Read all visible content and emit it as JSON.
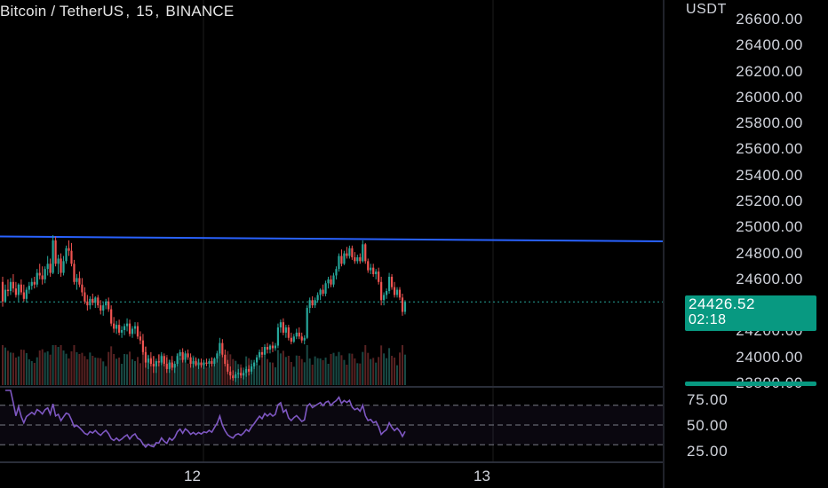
{
  "header": {
    "symbol": "Bitcoin / TetherUS",
    "interval": "15",
    "exchange": "BINANCE"
  },
  "price_scale": {
    "currency": "USDT",
    "labels": [
      "26600.00",
      "26400.00",
      "26200.00",
      "26000.00",
      "25800.00",
      "25600.00",
      "25400.00",
      "25200.00",
      "25000.00",
      "24800.00",
      "24600.00",
      "24400.00",
      "24200.00",
      "24000.00",
      "23800.00"
    ]
  },
  "current_price": {
    "value": "24426.52",
    "countdown": "02:18"
  },
  "rsi_scale": {
    "labels": [
      "75.00",
      "50.00",
      "25.00"
    ]
  },
  "time_axis": {
    "labels": [
      "12",
      "13"
    ]
  },
  "colors": {
    "background": "#000000",
    "up_candle": "#26a69a",
    "down_candle": "#ef5350",
    "trendline": "#2962ff",
    "rsi_line": "#7e57c2",
    "rsi_band": "#7e57c2",
    "price_tag": "#089981",
    "grid": "#1c1c1c"
  },
  "chart_data": {
    "type": "candlestick",
    "price_range": [
      23800,
      26600
    ],
    "trendline": [
      {
        "time_index": 0,
        "price": 24930
      },
      {
        "time_index": 248,
        "price": 24893
      }
    ],
    "current_price_line": 24426.52,
    "rsi": {
      "upper_band": 70,
      "middle_band": 50,
      "lower_band": 30,
      "range": [
        15,
        85
      ]
    },
    "candles": [
      {
        "o": 24580,
        "h": 24620,
        "l": 24390,
        "c": 24430
      },
      {
        "o": 24430,
        "h": 24560,
        "l": 24420,
        "c": 24520
      },
      {
        "o": 24520,
        "h": 24600,
        "l": 24470,
        "c": 24510
      },
      {
        "o": 24510,
        "h": 24610,
        "l": 24480,
        "c": 24580
      },
      {
        "o": 24580,
        "h": 24640,
        "l": 24500,
        "c": 24530
      },
      {
        "o": 24530,
        "h": 24580,
        "l": 24460,
        "c": 24480
      },
      {
        "o": 24480,
        "h": 24570,
        "l": 24430,
        "c": 24560
      },
      {
        "o": 24560,
        "h": 24600,
        "l": 24480,
        "c": 24500
      },
      {
        "o": 24500,
        "h": 24560,
        "l": 24430,
        "c": 24450
      },
      {
        "o": 24450,
        "h": 24540,
        "l": 24420,
        "c": 24520
      },
      {
        "o": 24520,
        "h": 24580,
        "l": 24490,
        "c": 24550
      },
      {
        "o": 24550,
        "h": 24610,
        "l": 24520,
        "c": 24580
      },
      {
        "o": 24580,
        "h": 24620,
        "l": 24530,
        "c": 24560
      },
      {
        "o": 24560,
        "h": 24680,
        "l": 24540,
        "c": 24650
      },
      {
        "o": 24650,
        "h": 24720,
        "l": 24600,
        "c": 24630
      },
      {
        "o": 24630,
        "h": 24700,
        "l": 24560,
        "c": 24600
      },
      {
        "o": 24600,
        "h": 24700,
        "l": 24570,
        "c": 24680
      },
      {
        "o": 24680,
        "h": 24780,
        "l": 24630,
        "c": 24720
      },
      {
        "o": 24720,
        "h": 24760,
        "l": 24620,
        "c": 24650
      },
      {
        "o": 24650,
        "h": 24940,
        "l": 24640,
        "c": 24900
      },
      {
        "o": 24900,
        "h": 24930,
        "l": 24700,
        "c": 24720
      },
      {
        "o": 24720,
        "h": 24790,
        "l": 24640,
        "c": 24760
      },
      {
        "o": 24760,
        "h": 24800,
        "l": 24620,
        "c": 24650
      },
      {
        "o": 24650,
        "h": 24780,
        "l": 24630,
        "c": 24740
      },
      {
        "o": 24740,
        "h": 24860,
        "l": 24720,
        "c": 24840
      },
      {
        "o": 24840,
        "h": 24900,
        "l": 24780,
        "c": 24820
      },
      {
        "o": 24820,
        "h": 24880,
        "l": 24700,
        "c": 24720
      },
      {
        "o": 24720,
        "h": 24750,
        "l": 24560,
        "c": 24580
      },
      {
        "o": 24580,
        "h": 24640,
        "l": 24520,
        "c": 24610
      },
      {
        "o": 24610,
        "h": 24660,
        "l": 24540,
        "c": 24560
      },
      {
        "o": 24560,
        "h": 24610,
        "l": 24470,
        "c": 24500
      },
      {
        "o": 24500,
        "h": 24540,
        "l": 24410,
        "c": 24430
      },
      {
        "o": 24430,
        "h": 24480,
        "l": 24360,
        "c": 24400
      },
      {
        "o": 24400,
        "h": 24470,
        "l": 24370,
        "c": 24450
      },
      {
        "o": 24450,
        "h": 24490,
        "l": 24400,
        "c": 24420
      },
      {
        "o": 24420,
        "h": 24470,
        "l": 24380,
        "c": 24460
      },
      {
        "o": 24460,
        "h": 24480,
        "l": 24380,
        "c": 24400
      },
      {
        "o": 24400,
        "h": 24440,
        "l": 24330,
        "c": 24360
      },
      {
        "o": 24360,
        "h": 24420,
        "l": 24320,
        "c": 24400
      },
      {
        "o": 24400,
        "h": 24450,
        "l": 24370,
        "c": 24430
      },
      {
        "o": 24430,
        "h": 24460,
        "l": 24350,
        "c": 24370
      },
      {
        "o": 24370,
        "h": 24400,
        "l": 24240,
        "c": 24260
      },
      {
        "o": 24260,
        "h": 24310,
        "l": 24190,
        "c": 24220
      },
      {
        "o": 24220,
        "h": 24280,
        "l": 24180,
        "c": 24250
      },
      {
        "o": 24250,
        "h": 24290,
        "l": 24170,
        "c": 24190
      },
      {
        "o": 24190,
        "h": 24240,
        "l": 24150,
        "c": 24210
      },
      {
        "o": 24210,
        "h": 24260,
        "l": 24170,
        "c": 24240
      },
      {
        "o": 24240,
        "h": 24300,
        "l": 24200,
        "c": 24260
      },
      {
        "o": 24260,
        "h": 24290,
        "l": 24160,
        "c": 24180
      },
      {
        "o": 24180,
        "h": 24240,
        "l": 24150,
        "c": 24220
      },
      {
        "o": 24220,
        "h": 24270,
        "l": 24180,
        "c": 24240
      },
      {
        "o": 24240,
        "h": 24270,
        "l": 24140,
        "c": 24160
      },
      {
        "o": 24160,
        "h": 24200,
        "l": 24100,
        "c": 24130
      },
      {
        "o": 24130,
        "h": 24180,
        "l": 24020,
        "c": 24040
      },
      {
        "o": 24040,
        "h": 24080,
        "l": 23920,
        "c": 23960
      },
      {
        "o": 23960,
        "h": 24020,
        "l": 23910,
        "c": 23990
      },
      {
        "o": 23990,
        "h": 24040,
        "l": 23930,
        "c": 23950
      },
      {
        "o": 23950,
        "h": 24010,
        "l": 23880,
        "c": 23930
      },
      {
        "o": 23930,
        "h": 23990,
        "l": 23880,
        "c": 23970
      },
      {
        "o": 23970,
        "h": 24020,
        "l": 23930,
        "c": 23960
      },
      {
        "o": 23960,
        "h": 24040,
        "l": 23940,
        "c": 24010
      },
      {
        "o": 24010,
        "h": 24030,
        "l": 23930,
        "c": 23950
      },
      {
        "o": 23950,
        "h": 24000,
        "l": 23880,
        "c": 23910
      },
      {
        "o": 23910,
        "h": 23980,
        "l": 23880,
        "c": 23960
      },
      {
        "o": 23960,
        "h": 24010,
        "l": 23900,
        "c": 23920
      },
      {
        "o": 23920,
        "h": 23970,
        "l": 23880,
        "c": 23950
      },
      {
        "o": 23950,
        "h": 24030,
        "l": 23930,
        "c": 24010
      },
      {
        "o": 24010,
        "h": 24060,
        "l": 23980,
        "c": 24040
      },
      {
        "o": 24040,
        "h": 24070,
        "l": 23960,
        "c": 23980
      },
      {
        "o": 23980,
        "h": 24050,
        "l": 23960,
        "c": 24030
      },
      {
        "o": 24030,
        "h": 24060,
        "l": 23980,
        "c": 24000
      },
      {
        "o": 24000,
        "h": 24030,
        "l": 23920,
        "c": 23950
      },
      {
        "o": 23950,
        "h": 24000,
        "l": 23920,
        "c": 23970
      },
      {
        "o": 23970,
        "h": 24000,
        "l": 23930,
        "c": 23940
      },
      {
        "o": 23940,
        "h": 23990,
        "l": 23910,
        "c": 23960
      },
      {
        "o": 23960,
        "h": 23990,
        "l": 23920,
        "c": 23940
      },
      {
        "o": 23940,
        "h": 23980,
        "l": 23910,
        "c": 23960
      },
      {
        "o": 23960,
        "h": 23990,
        "l": 23930,
        "c": 23950
      },
      {
        "o": 23950,
        "h": 23990,
        "l": 23920,
        "c": 23970
      },
      {
        "o": 23970,
        "h": 24000,
        "l": 23930,
        "c": 23950
      },
      {
        "o": 23950,
        "h": 24000,
        "l": 23930,
        "c": 23990
      },
      {
        "o": 23990,
        "h": 24050,
        "l": 23960,
        "c": 24030
      },
      {
        "o": 24030,
        "h": 24150,
        "l": 24010,
        "c": 24110
      },
      {
        "o": 24110,
        "h": 24140,
        "l": 24000,
        "c": 24020
      },
      {
        "o": 24020,
        "h": 24060,
        "l": 23930,
        "c": 23950
      },
      {
        "o": 23950,
        "h": 23980,
        "l": 23870,
        "c": 23890
      },
      {
        "o": 23890,
        "h": 23930,
        "l": 23830,
        "c": 23860
      },
      {
        "o": 23860,
        "h": 23900,
        "l": 23820,
        "c": 23840
      },
      {
        "o": 23840,
        "h": 23890,
        "l": 23810,
        "c": 23870
      },
      {
        "o": 23870,
        "h": 23910,
        "l": 23840,
        "c": 23880
      },
      {
        "o": 23880,
        "h": 23920,
        "l": 23840,
        "c": 23860
      },
      {
        "o": 23860,
        "h": 23900,
        "l": 23830,
        "c": 23880
      },
      {
        "o": 23880,
        "h": 23930,
        "l": 23850,
        "c": 23910
      },
      {
        "o": 23910,
        "h": 23940,
        "l": 23860,
        "c": 23890
      },
      {
        "o": 23890,
        "h": 23950,
        "l": 23870,
        "c": 23930
      },
      {
        "o": 23930,
        "h": 23980,
        "l": 23910,
        "c": 23960
      },
      {
        "o": 23960,
        "h": 24020,
        "l": 23940,
        "c": 24000
      },
      {
        "o": 24000,
        "h": 24060,
        "l": 23980,
        "c": 24040
      },
      {
        "o": 24040,
        "h": 24080,
        "l": 24000,
        "c": 24020
      },
      {
        "o": 24020,
        "h": 24100,
        "l": 24010,
        "c": 24080
      },
      {
        "o": 24080,
        "h": 24110,
        "l": 24030,
        "c": 24060
      },
      {
        "o": 24060,
        "h": 24100,
        "l": 24030,
        "c": 24090
      },
      {
        "o": 24090,
        "h": 24120,
        "l": 24040,
        "c": 24070
      },
      {
        "o": 24070,
        "h": 24110,
        "l": 24050,
        "c": 24090
      },
      {
        "o": 24090,
        "h": 24260,
        "l": 24070,
        "c": 24230
      },
      {
        "o": 24230,
        "h": 24290,
        "l": 24190,
        "c": 24270
      },
      {
        "o": 24270,
        "h": 24300,
        "l": 24170,
        "c": 24190
      },
      {
        "o": 24190,
        "h": 24250,
        "l": 24150,
        "c": 24230
      },
      {
        "o": 24230,
        "h": 24250,
        "l": 24130,
        "c": 24150
      },
      {
        "o": 24150,
        "h": 24190,
        "l": 24100,
        "c": 24120
      },
      {
        "o": 24120,
        "h": 24180,
        "l": 24110,
        "c": 24160
      },
      {
        "o": 24160,
        "h": 24220,
        "l": 24140,
        "c": 24190
      },
      {
        "o": 24190,
        "h": 24230,
        "l": 24140,
        "c": 24160
      },
      {
        "o": 24160,
        "h": 24190,
        "l": 24110,
        "c": 24130
      },
      {
        "o": 24130,
        "h": 24170,
        "l": 24100,
        "c": 24150
      },
      {
        "o": 24150,
        "h": 24400,
        "l": 24140,
        "c": 24380
      },
      {
        "o": 24380,
        "h": 24460,
        "l": 24340,
        "c": 24440
      },
      {
        "o": 24440,
        "h": 24470,
        "l": 24380,
        "c": 24400
      },
      {
        "o": 24400,
        "h": 24460,
        "l": 24380,
        "c": 24440
      },
      {
        "o": 24440,
        "h": 24500,
        "l": 24420,
        "c": 24480
      },
      {
        "o": 24480,
        "h": 24530,
        "l": 24440,
        "c": 24520
      },
      {
        "o": 24520,
        "h": 24560,
        "l": 24470,
        "c": 24490
      },
      {
        "o": 24490,
        "h": 24590,
        "l": 24470,
        "c": 24570
      },
      {
        "o": 24570,
        "h": 24620,
        "l": 24530,
        "c": 24600
      },
      {
        "o": 24600,
        "h": 24630,
        "l": 24540,
        "c": 24560
      },
      {
        "o": 24560,
        "h": 24650,
        "l": 24540,
        "c": 24630
      },
      {
        "o": 24630,
        "h": 24700,
        "l": 24600,
        "c": 24680
      },
      {
        "o": 24680,
        "h": 24800,
        "l": 24660,
        "c": 24780
      },
      {
        "o": 24780,
        "h": 24830,
        "l": 24700,
        "c": 24720
      },
      {
        "o": 24720,
        "h": 24820,
        "l": 24710,
        "c": 24800
      },
      {
        "o": 24800,
        "h": 24850,
        "l": 24760,
        "c": 24780
      },
      {
        "o": 24780,
        "h": 24860,
        "l": 24760,
        "c": 24840
      },
      {
        "o": 24840,
        "h": 24860,
        "l": 24750,
        "c": 24770
      },
      {
        "o": 24770,
        "h": 24810,
        "l": 24720,
        "c": 24740
      },
      {
        "o": 24740,
        "h": 24790,
        "l": 24720,
        "c": 24770
      },
      {
        "o": 24770,
        "h": 24800,
        "l": 24720,
        "c": 24740
      },
      {
        "o": 24740,
        "h": 24900,
        "l": 24730,
        "c": 24870
      },
      {
        "o": 24870,
        "h": 24880,
        "l": 24720,
        "c": 24740
      },
      {
        "o": 24740,
        "h": 24760,
        "l": 24650,
        "c": 24670
      },
      {
        "o": 24670,
        "h": 24720,
        "l": 24640,
        "c": 24690
      },
      {
        "o": 24690,
        "h": 24720,
        "l": 24620,
        "c": 24640
      },
      {
        "o": 24640,
        "h": 24680,
        "l": 24600,
        "c": 24660
      },
      {
        "o": 24660,
        "h": 24690,
        "l": 24560,
        "c": 24580
      },
      {
        "o": 24580,
        "h": 24620,
        "l": 24400,
        "c": 24440
      },
      {
        "o": 24440,
        "h": 24500,
        "l": 24400,
        "c": 24480
      },
      {
        "o": 24480,
        "h": 24530,
        "l": 24450,
        "c": 24510
      },
      {
        "o": 24510,
        "h": 24650,
        "l": 24490,
        "c": 24620
      },
      {
        "o": 24620,
        "h": 24640,
        "l": 24520,
        "c": 24540
      },
      {
        "o": 24540,
        "h": 24580,
        "l": 24460,
        "c": 24480
      },
      {
        "o": 24480,
        "h": 24540,
        "l": 24460,
        "c": 24520
      },
      {
        "o": 24520,
        "h": 24540,
        "l": 24440,
        "c": 24460
      },
      {
        "o": 24460,
        "h": 24490,
        "l": 24320,
        "c": 24350
      },
      {
        "o": 24350,
        "h": 24440,
        "l": 24330,
        "c": 24427
      }
    ]
  }
}
